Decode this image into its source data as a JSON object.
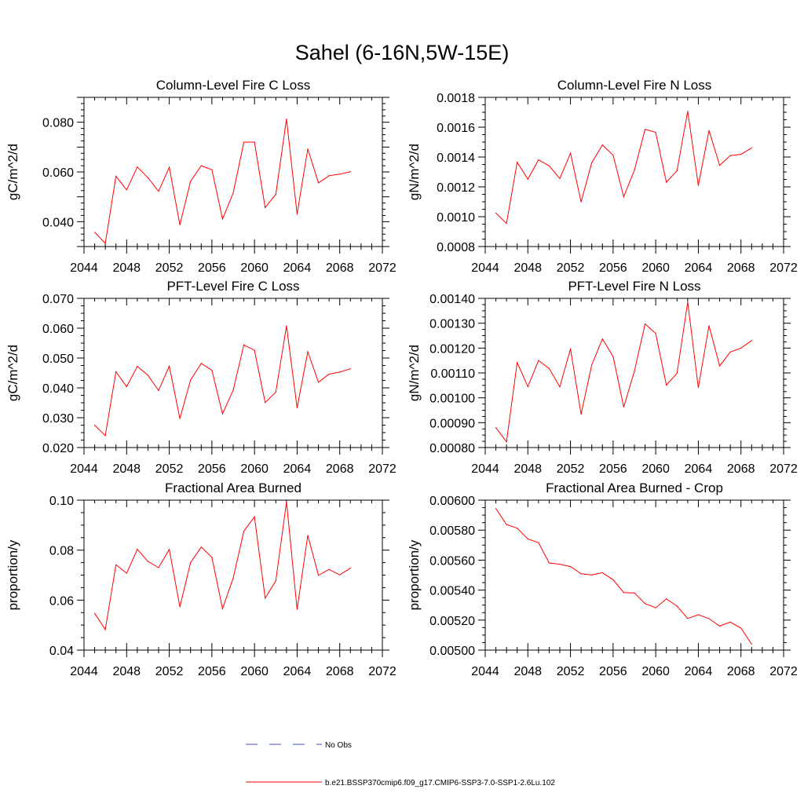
{
  "title": "Sahel (6-16N,5W-15E)",
  "legend": {
    "entries": [
      {
        "label": "No Obs",
        "color": "#3b4fc8",
        "dash": "dashed"
      },
      {
        "label": "b.e21.BSSP370cmip6.f09_g17.CMIP6-SSP3-7.0-SSP1-2.6Lu.102",
        "color": "#ff0000",
        "dash": "solid"
      }
    ]
  },
  "chart_data": [
    {
      "type": "line",
      "title": "Column-Level Fire C Loss",
      "xlabel": "",
      "ylabel": "gC/m^2/d",
      "xlim": [
        2044,
        2072
      ],
      "ylim": [
        0.03,
        0.09
      ],
      "xticks": [
        "2044",
        "2048",
        "2052",
        "2056",
        "2060",
        "2064",
        "2068",
        "2072"
      ],
      "yticks": [
        {
          "v": 0.04,
          "label": "0.040"
        },
        {
          "v": 0.06,
          "label": "0.060"
        },
        {
          "v": 0.08,
          "label": "0.080"
        }
      ],
      "ymajor": 0.01,
      "yminor": 0.0025,
      "grid": false,
      "color": "#ff0000",
      "x": [
        2045,
        2046,
        2047,
        2048,
        2049,
        2050,
        2051,
        2052,
        2053,
        2054,
        2055,
        2056,
        2057,
        2058,
        2059,
        2060,
        2061,
        2062,
        2063,
        2064,
        2065,
        2066,
        2067,
        2068,
        2069
      ],
      "values": [
        0.0357,
        0.0313,
        0.0583,
        0.0528,
        0.062,
        0.0577,
        0.0522,
        0.0619,
        0.0387,
        0.0562,
        0.0625,
        0.0609,
        0.0411,
        0.0515,
        0.072,
        0.072,
        0.0457,
        0.051,
        0.0813,
        0.043,
        0.0693,
        0.0556,
        0.0585,
        0.0591,
        0.0601
      ]
    },
    {
      "type": "line",
      "title": "Column-Level Fire N Loss",
      "xlabel": "",
      "ylabel": "gN/m^2/d",
      "xlim": [
        2044,
        2072
      ],
      "ylim": [
        0.0008,
        0.0018
      ],
      "xticks": [
        "2044",
        "2048",
        "2052",
        "2056",
        "2060",
        "2064",
        "2068",
        "2072"
      ],
      "yticks": [
        {
          "v": 0.0008,
          "label": "0.0008"
        },
        {
          "v": 0.001,
          "label": "0.0010"
        },
        {
          "v": 0.0012,
          "label": "0.0012"
        },
        {
          "v": 0.0014,
          "label": "0.0014"
        },
        {
          "v": 0.0016,
          "label": "0.0016"
        },
        {
          "v": 0.0018,
          "label": "0.0018"
        }
      ],
      "ymajor": 0.0002,
      "yminor": 5e-05,
      "grid": false,
      "color": "#ff0000",
      "x": [
        2045,
        2046,
        2047,
        2048,
        2049,
        2050,
        2051,
        2052,
        2053,
        2054,
        2055,
        2056,
        2057,
        2058,
        2059,
        2060,
        2061,
        2062,
        2063,
        2064,
        2065,
        2066,
        2067,
        2068,
        2069
      ],
      "values": [
        0.001024,
        0.000955,
        0.001365,
        0.001252,
        0.001381,
        0.001341,
        0.001256,
        0.001426,
        0.001099,
        0.001362,
        0.001481,
        0.001412,
        0.001133,
        0.001312,
        0.001585,
        0.001566,
        0.001231,
        0.001309,
        0.001707,
        0.00121,
        0.001578,
        0.001344,
        0.00141,
        0.001418,
        0.001461
      ]
    },
    {
      "type": "line",
      "title": "PFT-Level Fire C Loss",
      "xlabel": "",
      "ylabel": "gC/m^2/d",
      "xlim": [
        2044,
        2072
      ],
      "ylim": [
        0.02,
        0.07
      ],
      "xticks": [
        "2044",
        "2048",
        "2052",
        "2056",
        "2060",
        "2064",
        "2068",
        "2072"
      ],
      "yticks": [
        {
          "v": 0.02,
          "label": "0.020"
        },
        {
          "v": 0.03,
          "label": "0.030"
        },
        {
          "v": 0.04,
          "label": "0.040"
        },
        {
          "v": 0.05,
          "label": "0.050"
        },
        {
          "v": 0.06,
          "label": "0.060"
        },
        {
          "v": 0.07,
          "label": "0.070"
        }
      ],
      "ymajor": 0.01,
      "yminor": 0.0025,
      "grid": false,
      "color": "#ff0000",
      "x": [
        2045,
        2046,
        2047,
        2048,
        2049,
        2050,
        2051,
        2052,
        2053,
        2054,
        2055,
        2056,
        2057,
        2058,
        2059,
        2060,
        2061,
        2062,
        2063,
        2064,
        2065,
        2066,
        2067,
        2068,
        2069
      ],
      "values": [
        0.0275,
        0.024,
        0.0454,
        0.0404,
        0.0472,
        0.0442,
        0.0391,
        0.0473,
        0.0297,
        0.0426,
        0.0482,
        0.0459,
        0.0313,
        0.0392,
        0.0544,
        0.0526,
        0.0351,
        0.0386,
        0.0608,
        0.0333,
        0.0521,
        0.0419,
        0.0446,
        0.0453,
        0.0464
      ]
    },
    {
      "type": "line",
      "title": "PFT-Level Fire N Loss",
      "xlabel": "",
      "ylabel": "gN/m^2/d",
      "xlim": [
        2044,
        2072
      ],
      "ylim": [
        0.0008,
        0.0014
      ],
      "xticks": [
        "2044",
        "2048",
        "2052",
        "2056",
        "2060",
        "2064",
        "2068",
        "2072"
      ],
      "yticks": [
        {
          "v": 0.0008,
          "label": "0.00080"
        },
        {
          "v": 0.0009,
          "label": "0.00090"
        },
        {
          "v": 0.001,
          "label": "0.00100"
        },
        {
          "v": 0.0011,
          "label": "0.00110"
        },
        {
          "v": 0.0012,
          "label": "0.00120"
        },
        {
          "v": 0.0013,
          "label": "0.00130"
        },
        {
          "v": 0.0014,
          "label": "0.00140"
        }
      ],
      "ymajor": 0.0001,
      "yminor": 2.5e-05,
      "grid": false,
      "color": "#ff0000",
      "x": [
        2045,
        2046,
        2047,
        2048,
        2049,
        2050,
        2051,
        2052,
        2053,
        2054,
        2055,
        2056,
        2057,
        2058,
        2059,
        2060,
        2061,
        2062,
        2063,
        2064,
        2065,
        2066,
        2067,
        2068,
        2069
      ],
      "values": [
        0.00088,
        0.000823,
        0.001142,
        0.001045,
        0.00115,
        0.001118,
        0.001044,
        0.001197,
        0.000934,
        0.001133,
        0.001237,
        0.001166,
        0.000963,
        0.001107,
        0.001297,
        0.001259,
        0.001051,
        0.001099,
        0.001385,
        0.001041,
        0.00129,
        0.001128,
        0.001184,
        0.0012,
        0.00123
      ]
    },
    {
      "type": "line",
      "title": "Fractional Area Burned",
      "xlabel": "",
      "ylabel": "proportion/y",
      "xlim": [
        2044,
        2072
      ],
      "ylim": [
        0.04,
        0.1
      ],
      "xticks": [
        "2044",
        "2048",
        "2052",
        "2056",
        "2060",
        "2064",
        "2068",
        "2072"
      ],
      "yticks": [
        {
          "v": 0.04,
          "label": "0.04"
        },
        {
          "v": 0.06,
          "label": "0.06"
        },
        {
          "v": 0.08,
          "label": "0.08"
        },
        {
          "v": 0.1,
          "label": "0.10"
        }
      ],
      "ymajor": 0.02,
      "yminor": 0.005,
      "grid": false,
      "color": "#ff0000",
      "x": [
        2045,
        2046,
        2047,
        2048,
        2049,
        2050,
        2051,
        2052,
        2053,
        2054,
        2055,
        2056,
        2057,
        2058,
        2059,
        2060,
        2061,
        2062,
        2063,
        2064,
        2065,
        2066,
        2067,
        2068,
        2069
      ],
      "values": [
        0.0547,
        0.0482,
        0.0741,
        0.0708,
        0.0803,
        0.0755,
        0.073,
        0.0803,
        0.0573,
        0.075,
        0.0812,
        0.0771,
        0.0566,
        0.0688,
        0.0876,
        0.0933,
        0.0608,
        0.0677,
        0.0993,
        0.0563,
        0.0859,
        0.0699,
        0.0723,
        0.0701,
        0.0728
      ]
    },
    {
      "type": "line",
      "title": "Fractional Area Burned - Crop",
      "xlabel": "",
      "ylabel": "proportion/y",
      "xlim": [
        2044,
        2072
      ],
      "ylim": [
        0.005,
        0.006
      ],
      "xticks": [
        "2044",
        "2048",
        "2052",
        "2056",
        "2060",
        "2064",
        "2068",
        "2072"
      ],
      "yticks": [
        {
          "v": 0.005,
          "label": "0.00500"
        },
        {
          "v": 0.0052,
          "label": "0.00520"
        },
        {
          "v": 0.0054,
          "label": "0.00540"
        },
        {
          "v": 0.0056,
          "label": "0.00560"
        },
        {
          "v": 0.0058,
          "label": "0.00580"
        },
        {
          "v": 0.006,
          "label": "0.00600"
        }
      ],
      "ymajor": 0.0002,
      "yminor": 5e-05,
      "grid": false,
      "color": "#ff0000",
      "x": [
        2045,
        2046,
        2047,
        2048,
        2049,
        2050,
        2051,
        2052,
        2053,
        2054,
        2055,
        2056,
        2057,
        2058,
        2059,
        2060,
        2061,
        2062,
        2063,
        2064,
        2065,
        2066,
        2067,
        2068,
        2069
      ],
      "values": [
        0.005944,
        0.005837,
        0.005813,
        0.005741,
        0.005717,
        0.005581,
        0.005573,
        0.005557,
        0.005509,
        0.005501,
        0.005516,
        0.005469,
        0.005384,
        0.005381,
        0.00531,
        0.005282,
        0.005342,
        0.005293,
        0.005211,
        0.005236,
        0.00521,
        0.00516,
        0.005187,
        0.005147,
        0.00504
      ]
    }
  ]
}
